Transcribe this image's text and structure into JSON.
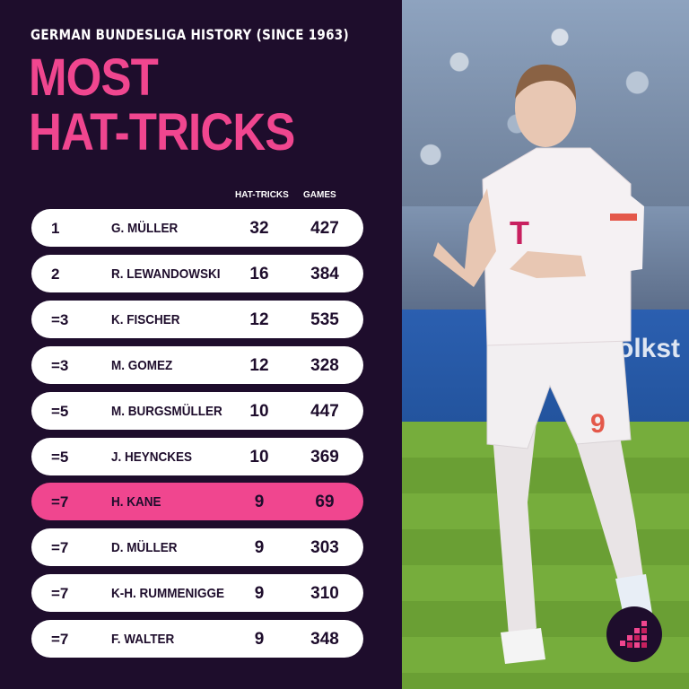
{
  "header": {
    "subtitle": "GERMAN BUNDESLIGA HISTORY (SINCE 1963)",
    "title_line1": "MOST",
    "title_line2": "HAT-TRICKS"
  },
  "columns": {
    "hat_tricks": "HAT-TRICKS",
    "games": "GAMES"
  },
  "rows": [
    {
      "rank": "1",
      "name": "G. MÜLLER",
      "hat_tricks": "32",
      "games": "427"
    },
    {
      "rank": "2",
      "name": "R. LEWANDOWSKI",
      "hat_tricks": "16",
      "games": "384"
    },
    {
      "rank": "=3",
      "name": "K. FISCHER",
      "hat_tricks": "12",
      "games": "535"
    },
    {
      "rank": "=3",
      "name": "M. GOMEZ",
      "hat_tricks": "12",
      "games": "328"
    },
    {
      "rank": "=5",
      "name": "M. BURGSMÜLLER",
      "hat_tricks": "10",
      "games": "447"
    },
    {
      "rank": "=5",
      "name": "J. HEYNCKES",
      "hat_tricks": "10",
      "games": "369"
    },
    {
      "rank": "=7",
      "name": "H. KANE",
      "hat_tricks": "9",
      "games": "69"
    },
    {
      "rank": "=7",
      "name": "D. MÜLLER",
      "hat_tricks": "9",
      "games": "303"
    },
    {
      "rank": "=7",
      "name": "K-H. RUMMENIGGE",
      "hat_tricks": "9",
      "games": "310"
    },
    {
      "rank": "=7",
      "name": "F. WALTER",
      "hat_tricks": "9",
      "games": "348"
    }
  ],
  "highlight_index": 6,
  "colors": {
    "background": "#1e0d2c",
    "accent": "#f0468f",
    "row_bg": "#ffffff"
  },
  "photo": {
    "banner_text": "olkst",
    "jersey_number": "9"
  }
}
